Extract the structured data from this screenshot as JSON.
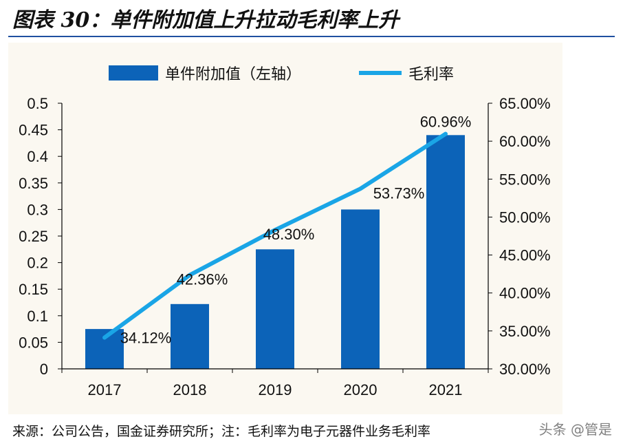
{
  "header": {
    "title": "图表 30：单件附加值上升拉动毛利率上升"
  },
  "footer": {
    "source": "来源：公司公告，国金证券研究所；注：毛利率为电子元器件业务毛利率",
    "watermark": "头条 @管是"
  },
  "colors": {
    "bar": "#0c63b8",
    "line": "#1aa5e6",
    "axis": "#000000",
    "panel_bg": "#fbf8f1",
    "title_rule": "#1f4fa0"
  },
  "chart_data": {
    "type": "bar",
    "categories": [
      "2017",
      "2018",
      "2019",
      "2020",
      "2021"
    ],
    "series": [
      {
        "name": "单件附加值（左轴）",
        "type": "bar",
        "axis": "left",
        "values": [
          0.075,
          0.122,
          0.225,
          0.3,
          0.44
        ]
      },
      {
        "name": "毛利率",
        "type": "line",
        "axis": "right",
        "values": [
          34.12,
          42.36,
          48.3,
          53.73,
          60.96
        ],
        "labels": [
          "34.12%",
          "42.36%",
          "48.30%",
          "53.73%",
          "60.96%"
        ]
      }
    ],
    "left_axis": {
      "ylim": [
        0,
        0.5
      ],
      "ticks": [
        "0",
        "0.05",
        "0.1",
        "0.15",
        "0.2",
        "0.25",
        "0.3",
        "0.35",
        "0.4",
        "0.45",
        "0.5"
      ]
    },
    "right_axis": {
      "ylim": [
        30,
        65
      ],
      "ticks": [
        "30.00%",
        "35.00%",
        "40.00%",
        "45.00%",
        "50.00%",
        "55.00%",
        "60.00%",
        "65.00%"
      ]
    },
    "grid": false,
    "legend_position": "top"
  }
}
